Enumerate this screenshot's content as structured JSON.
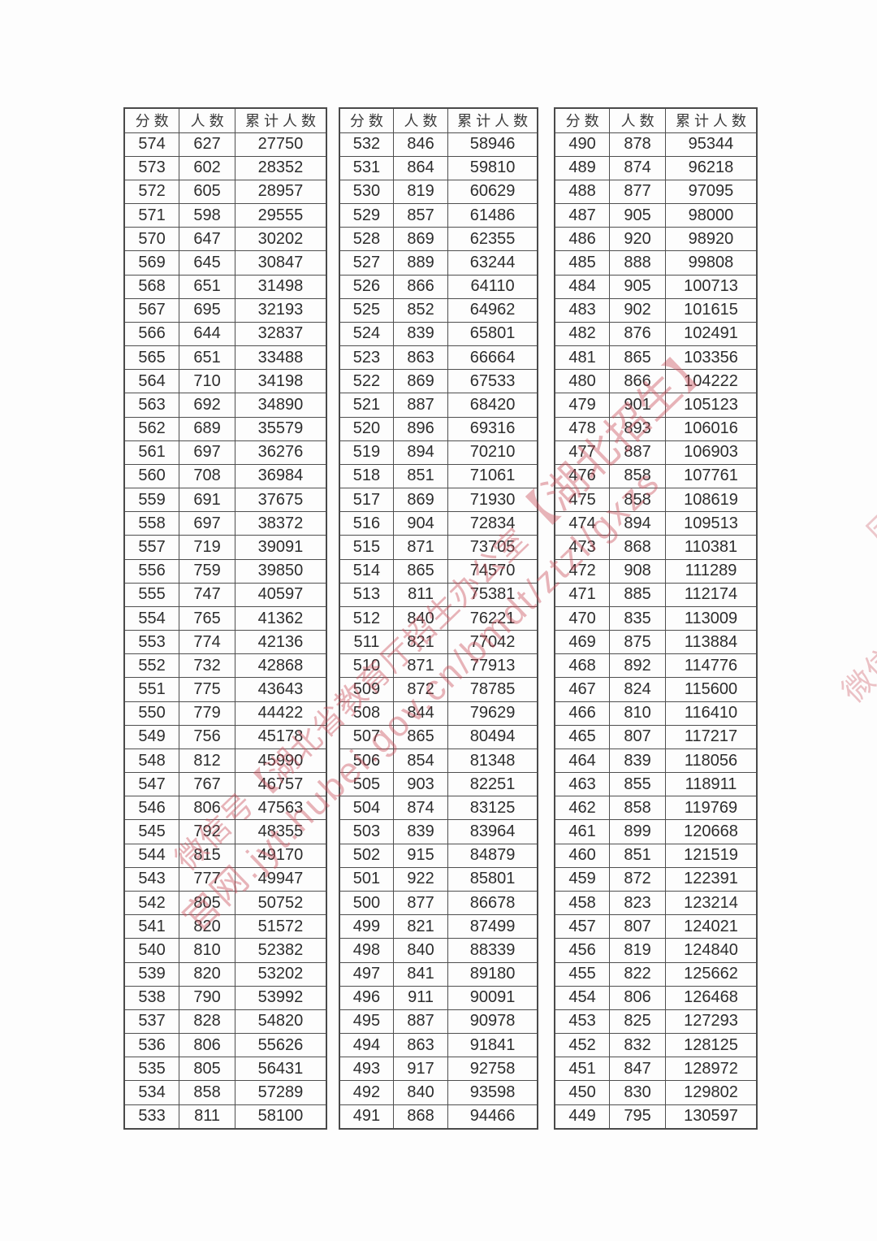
{
  "page": {
    "background": "#fdfdfd",
    "border_color": "#4f4f4f",
    "text_color": "#2d2d2d",
    "watermark_color": "#c74d58"
  },
  "table_headers": [
    "分数",
    "人数",
    "累计人数"
  ],
  "tables": [
    {
      "name": "score-table-1",
      "rows": [
        [
          574,
          627,
          27750
        ],
        [
          573,
          602,
          28352
        ],
        [
          572,
          605,
          28957
        ],
        [
          571,
          598,
          29555
        ],
        [
          570,
          647,
          30202
        ],
        [
          569,
          645,
          30847
        ],
        [
          568,
          651,
          31498
        ],
        [
          567,
          695,
          32193
        ],
        [
          566,
          644,
          32837
        ],
        [
          565,
          651,
          33488
        ],
        [
          564,
          710,
          34198
        ],
        [
          563,
          692,
          34890
        ],
        [
          562,
          689,
          35579
        ],
        [
          561,
          697,
          36276
        ],
        [
          560,
          708,
          36984
        ],
        [
          559,
          691,
          37675
        ],
        [
          558,
          697,
          38372
        ],
        [
          557,
          719,
          39091
        ],
        [
          556,
          759,
          39850
        ],
        [
          555,
          747,
          40597
        ],
        [
          554,
          765,
          41362
        ],
        [
          553,
          774,
          42136
        ],
        [
          552,
          732,
          42868
        ],
        [
          551,
          775,
          43643
        ],
        [
          550,
          779,
          44422
        ],
        [
          549,
          756,
          45178
        ],
        [
          548,
          812,
          45990
        ],
        [
          547,
          767,
          46757
        ],
        [
          546,
          806,
          47563
        ],
        [
          545,
          792,
          48355
        ],
        [
          544,
          815,
          49170
        ],
        [
          543,
          777,
          49947
        ],
        [
          542,
          805,
          50752
        ],
        [
          541,
          820,
          51572
        ],
        [
          540,
          810,
          52382
        ],
        [
          539,
          820,
          53202
        ],
        [
          538,
          790,
          53992
        ],
        [
          537,
          828,
          54820
        ],
        [
          536,
          806,
          55626
        ],
        [
          535,
          805,
          56431
        ],
        [
          534,
          858,
          57289
        ],
        [
          533,
          811,
          58100
        ]
      ]
    },
    {
      "name": "score-table-2",
      "rows": [
        [
          532,
          846,
          58946
        ],
        [
          531,
          864,
          59810
        ],
        [
          530,
          819,
          60629
        ],
        [
          529,
          857,
          61486
        ],
        [
          528,
          869,
          62355
        ],
        [
          527,
          889,
          63244
        ],
        [
          526,
          866,
          64110
        ],
        [
          525,
          852,
          64962
        ],
        [
          524,
          839,
          65801
        ],
        [
          523,
          863,
          66664
        ],
        [
          522,
          869,
          67533
        ],
        [
          521,
          887,
          68420
        ],
        [
          520,
          896,
          69316
        ],
        [
          519,
          894,
          70210
        ],
        [
          518,
          851,
          71061
        ],
        [
          517,
          869,
          71930
        ],
        [
          516,
          904,
          72834
        ],
        [
          515,
          871,
          73705
        ],
        [
          514,
          865,
          74570
        ],
        [
          513,
          811,
          75381
        ],
        [
          512,
          840,
          76221
        ],
        [
          511,
          821,
          77042
        ],
        [
          510,
          871,
          77913
        ],
        [
          509,
          872,
          78785
        ],
        [
          508,
          844,
          79629
        ],
        [
          507,
          865,
          80494
        ],
        [
          506,
          854,
          81348
        ],
        [
          505,
          903,
          82251
        ],
        [
          504,
          874,
          83125
        ],
        [
          503,
          839,
          83964
        ],
        [
          502,
          915,
          84879
        ],
        [
          501,
          922,
          85801
        ],
        [
          500,
          877,
          86678
        ],
        [
          499,
          821,
          87499
        ],
        [
          498,
          840,
          88339
        ],
        [
          497,
          841,
          89180
        ],
        [
          496,
          911,
          90091
        ],
        [
          495,
          887,
          90978
        ],
        [
          494,
          863,
          91841
        ],
        [
          493,
          917,
          92758
        ],
        [
          492,
          840,
          93598
        ],
        [
          491,
          868,
          94466
        ]
      ]
    },
    {
      "name": "score-table-3",
      "rows": [
        [
          490,
          878,
          95344
        ],
        [
          489,
          874,
          96218
        ],
        [
          488,
          877,
          97095
        ],
        [
          487,
          905,
          98000
        ],
        [
          486,
          920,
          98920
        ],
        [
          485,
          888,
          99808
        ],
        [
          484,
          905,
          100713
        ],
        [
          483,
          902,
          101615
        ],
        [
          482,
          876,
          102491
        ],
        [
          481,
          865,
          103356
        ],
        [
          480,
          866,
          104222
        ],
        [
          479,
          901,
          105123
        ],
        [
          478,
          893,
          106016
        ],
        [
          477,
          887,
          106903
        ],
        [
          476,
          858,
          107761
        ],
        [
          475,
          858,
          108619
        ],
        [
          474,
          894,
          109513
        ],
        [
          473,
          868,
          110381
        ],
        [
          472,
          908,
          111289
        ],
        [
          471,
          885,
          112174
        ],
        [
          470,
          835,
          113009
        ],
        [
          469,
          875,
          113884
        ],
        [
          468,
          892,
          114776
        ],
        [
          467,
          824,
          115600
        ],
        [
          466,
          810,
          116410
        ],
        [
          465,
          807,
          117217
        ],
        [
          464,
          839,
          118056
        ],
        [
          463,
          855,
          118911
        ],
        [
          462,
          858,
          119769
        ],
        [
          461,
          899,
          120668
        ],
        [
          460,
          851,
          121519
        ],
        [
          459,
          872,
          122391
        ],
        [
          458,
          823,
          123214
        ],
        [
          457,
          807,
          124021
        ],
        [
          456,
          819,
          124840
        ],
        [
          455,
          822,
          125662
        ],
        [
          454,
          806,
          126468
        ],
        [
          453,
          825,
          127293
        ],
        [
          452,
          832,
          128125
        ],
        [
          451,
          847,
          128972
        ],
        [
          450,
          830,
          129802
        ],
        [
          449,
          795,
          130597
        ]
      ]
    }
  ],
  "watermark": {
    "line1_prefix": "微信号【湖北省教育厅招生办公室",
    "line1_highlight": "【湖北招生】",
    "line2": "官网.jyt.hubei.gov.cn/bmdt/ztzl/gxzs",
    "edge_fragment_1": "微信号【湖北省教育厅",
    "edge_fragment_2": "厅招生办公室"
  }
}
